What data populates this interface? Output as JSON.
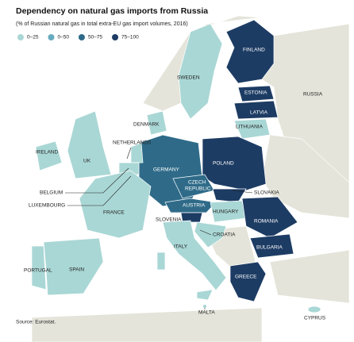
{
  "title": "Dependency on natural gas imports from Russia",
  "subtitle": "(% of Russian natural gas in total extra-EU gas import volumes, 2016)",
  "legend": [
    {
      "label": "0–25",
      "color": "#a9d7d5"
    },
    {
      "label": "0–50",
      "color": "#68abbf"
    },
    {
      "label": "50–75",
      "color": "#2f6b89"
    },
    {
      "label": "75–100",
      "color": "#1d3c64"
    }
  ],
  "countries": [
    "FINLAND",
    "SWEDEN",
    "RUSSIA",
    "ESTONIA",
    "LATVIA",
    "LITHUANIA",
    "DENMARK",
    "NETHERLANDS",
    "IRELAND",
    "UK",
    "POLAND",
    "GERMANY",
    "CZECH",
    "REPUBLIC",
    "SLOVAKIA",
    "BELGIUM",
    "LUXEMBOURG",
    "AUSTRIA",
    "HUNGARY",
    "ROMANIA",
    "FRANCE",
    "SLOVENIA",
    "CROATIA",
    "BULGARIA",
    "ITALY",
    "PORTUGAL",
    "SPAIN",
    "GREECE",
    "MALTA",
    "CYPRUS"
  ],
  "source": "Source: Eurostat."
}
